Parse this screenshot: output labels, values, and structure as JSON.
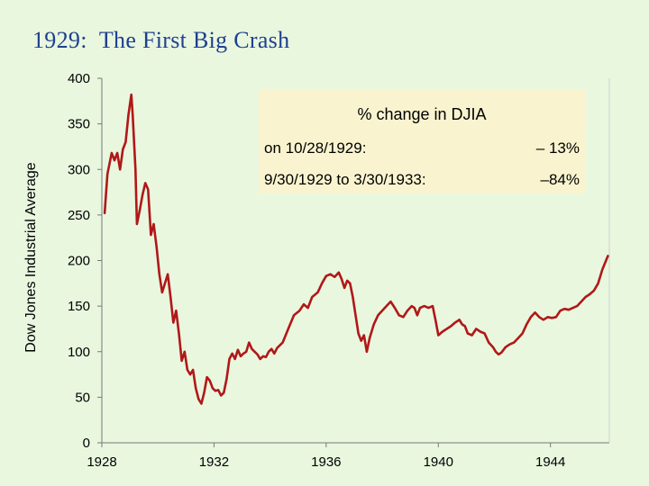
{
  "slide": {
    "title": "1929:  The First Big Crash"
  },
  "annotation": {
    "title": "% change in DJIA",
    "rows": [
      {
        "label": "on 10/28/1929:",
        "value": "– 13%"
      },
      {
        "label": "9/30/1929 to 3/30/1933:",
        "value": "–84%"
      }
    ]
  },
  "colors": {
    "background": "#e9f7df",
    "line": "#b01818",
    "title": "#1f3f8f",
    "annotation_box": "#f9f4cf"
  },
  "chart_data": {
    "type": "line",
    "title": "",
    "xlabel": "",
    "ylabel": "Dow Jones Industrial Average",
    "xlim": [
      1928,
      1946.1
    ],
    "ylim": [
      0,
      400
    ],
    "x_ticks": [
      1928,
      1932,
      1936,
      1940,
      1944
    ],
    "x_tick_labels": [
      "1928",
      "1932",
      "1936",
      "1940",
      "1944"
    ],
    "y_ticks": [
      0,
      50,
      100,
      150,
      200,
      250,
      300,
      350,
      400
    ],
    "y_tick_labels": [
      "0",
      "50",
      "100",
      "150",
      "200",
      "250",
      "300",
      "350",
      "400"
    ],
    "grid": false,
    "series": [
      {
        "name": "",
        "points": [
          [
            1928.1,
            252
          ],
          [
            1928.2,
            295
          ],
          [
            1928.35,
            318
          ],
          [
            1928.45,
            310
          ],
          [
            1928.55,
            318
          ],
          [
            1928.65,
            300
          ],
          [
            1928.75,
            322
          ],
          [
            1928.85,
            330
          ],
          [
            1928.95,
            360
          ],
          [
            1929.05,
            382
          ],
          [
            1929.1,
            360
          ],
          [
            1929.2,
            300
          ],
          [
            1929.25,
            240
          ],
          [
            1929.35,
            255
          ],
          [
            1929.45,
            272
          ],
          [
            1929.55,
            285
          ],
          [
            1929.65,
            278
          ],
          [
            1929.75,
            228
          ],
          [
            1929.85,
            240
          ],
          [
            1929.95,
            215
          ],
          [
            1930.05,
            185
          ],
          [
            1930.15,
            165
          ],
          [
            1930.25,
            175
          ],
          [
            1930.35,
            185
          ],
          [
            1930.45,
            160
          ],
          [
            1930.55,
            132
          ],
          [
            1930.65,
            145
          ],
          [
            1930.75,
            120
          ],
          [
            1930.85,
            90
          ],
          [
            1930.95,
            100
          ],
          [
            1931.05,
            80
          ],
          [
            1931.15,
            75
          ],
          [
            1931.25,
            80
          ],
          [
            1931.35,
            60
          ],
          [
            1931.45,
            48
          ],
          [
            1931.55,
            43
          ],
          [
            1931.65,
            55
          ],
          [
            1931.75,
            72
          ],
          [
            1931.85,
            68
          ],
          [
            1931.95,
            60
          ],
          [
            1932.05,
            57
          ],
          [
            1932.15,
            58
          ],
          [
            1932.25,
            52
          ],
          [
            1932.35,
            55
          ],
          [
            1932.45,
            70
          ],
          [
            1932.55,
            92
          ],
          [
            1932.65,
            98
          ],
          [
            1932.75,
            92
          ],
          [
            1932.85,
            102
          ],
          [
            1932.95,
            95
          ],
          [
            1933.05,
            98
          ],
          [
            1933.15,
            100
          ],
          [
            1933.25,
            110
          ],
          [
            1933.35,
            103
          ],
          [
            1933.45,
            100
          ],
          [
            1933.55,
            97
          ],
          [
            1933.65,
            92
          ],
          [
            1933.75,
            95
          ],
          [
            1933.85,
            94
          ],
          [
            1933.95,
            100
          ],
          [
            1934.05,
            103
          ],
          [
            1934.15,
            98
          ],
          [
            1934.25,
            104
          ],
          [
            1934.45,
            110
          ],
          [
            1934.65,
            125
          ],
          [
            1934.85,
            140
          ],
          [
            1935.05,
            145
          ],
          [
            1935.2,
            152
          ],
          [
            1935.35,
            148
          ],
          [
            1935.5,
            160
          ],
          [
            1935.7,
            165
          ],
          [
            1935.85,
            175
          ],
          [
            1936.0,
            183
          ],
          [
            1936.15,
            185
          ],
          [
            1936.3,
            182
          ],
          [
            1936.45,
            187
          ],
          [
            1936.55,
            180
          ],
          [
            1936.65,
            170
          ],
          [
            1936.75,
            178
          ],
          [
            1936.85,
            175
          ],
          [
            1936.95,
            160
          ],
          [
            1937.05,
            140
          ],
          [
            1937.15,
            120
          ],
          [
            1937.25,
            112
          ],
          [
            1937.35,
            118
          ],
          [
            1937.45,
            100
          ],
          [
            1937.55,
            115
          ],
          [
            1937.7,
            130
          ],
          [
            1937.85,
            140
          ],
          [
            1938.0,
            145
          ],
          [
            1938.15,
            150
          ],
          [
            1938.3,
            155
          ],
          [
            1938.45,
            148
          ],
          [
            1938.6,
            140
          ],
          [
            1938.75,
            138
          ],
          [
            1938.9,
            145
          ],
          [
            1939.05,
            150
          ],
          [
            1939.15,
            148
          ],
          [
            1939.25,
            140
          ],
          [
            1939.35,
            148
          ],
          [
            1939.5,
            150
          ],
          [
            1939.65,
            148
          ],
          [
            1939.8,
            150
          ],
          [
            1939.9,
            135
          ],
          [
            1940.0,
            118
          ],
          [
            1940.15,
            122
          ],
          [
            1940.3,
            125
          ],
          [
            1940.45,
            128
          ],
          [
            1940.6,
            132
          ],
          [
            1940.75,
            135
          ],
          [
            1940.85,
            130
          ],
          [
            1940.95,
            128
          ],
          [
            1941.05,
            120
          ],
          [
            1941.2,
            118
          ],
          [
            1941.35,
            125
          ],
          [
            1941.5,
            122
          ],
          [
            1941.65,
            120
          ],
          [
            1941.8,
            110
          ],
          [
            1941.95,
            105
          ],
          [
            1942.05,
            100
          ],
          [
            1942.15,
            97
          ],
          [
            1942.25,
            99
          ],
          [
            1942.4,
            105
          ],
          [
            1942.55,
            108
          ],
          [
            1942.7,
            110
          ],
          [
            1942.85,
            115
          ],
          [
            1943.0,
            120
          ],
          [
            1943.15,
            130
          ],
          [
            1943.3,
            138
          ],
          [
            1943.45,
            143
          ],
          [
            1943.6,
            138
          ],
          [
            1943.75,
            135
          ],
          [
            1943.9,
            138
          ],
          [
            1944.05,
            137
          ],
          [
            1944.2,
            138
          ],
          [
            1944.35,
            145
          ],
          [
            1944.5,
            147
          ],
          [
            1944.65,
            146
          ],
          [
            1944.8,
            148
          ],
          [
            1944.95,
            150
          ],
          [
            1945.1,
            155
          ],
          [
            1945.25,
            160
          ],
          [
            1945.4,
            163
          ],
          [
            1945.55,
            167
          ],
          [
            1945.7,
            175
          ],
          [
            1945.85,
            190
          ],
          [
            1946.05,
            205
          ]
        ]
      }
    ]
  }
}
